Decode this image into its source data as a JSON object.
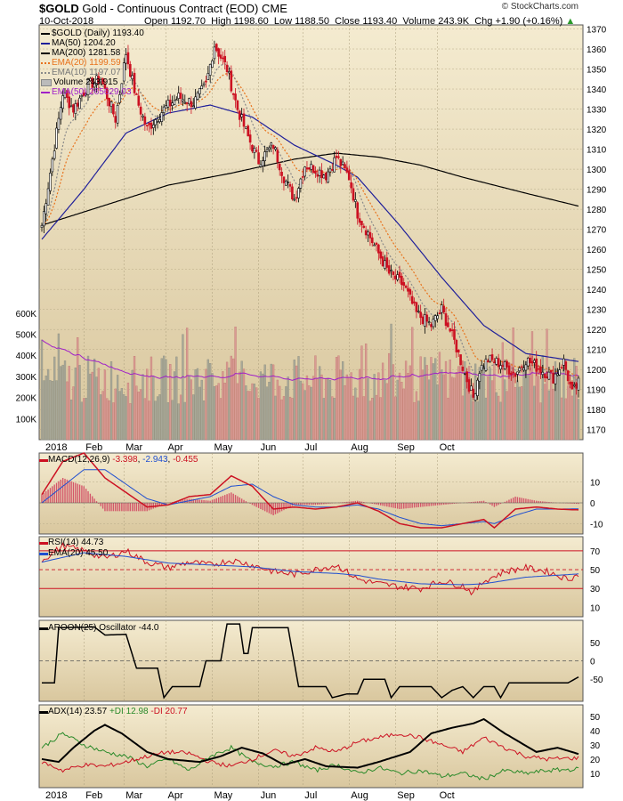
{
  "header": {
    "symbol": "$GOLD",
    "name": "Gold - Continuous Contract (EOD)",
    "exchange": "CME",
    "brand": "© StockCharts.com",
    "date": "10-Oct-2018",
    "open_label": "Open",
    "open": "1192.70",
    "high_label": "High",
    "high": "1198.60",
    "low_label": "Low",
    "low": "1188.50",
    "close_label": "Close",
    "close": "1193.40",
    "volume_label": "Volume",
    "volume": "243.9K",
    "chg_label": "Chg",
    "chg": "+1.90 (+0.16%)"
  },
  "legend": [
    {
      "text": "$GOLD (Daily) 1193.40",
      "color": "#000000",
      "style": "candle"
    },
    {
      "text": "MA(50) 1204.20",
      "color": "#1f1f9a",
      "style": "solid"
    },
    {
      "text": "MA(200) 1281.58",
      "color": "#000000",
      "style": "solid"
    },
    {
      "text": "EMA(20) 1199.59",
      "color": "#e8721c",
      "style": "dotted"
    },
    {
      "text": "EMA(10) 1197.07",
      "color": "#8a8a8a",
      "style": "dotted"
    },
    {
      "text": "Volume 243,915",
      "color": "#8a8a8a",
      "style": "block"
    },
    {
      "text": "EMA(50) 265629.03",
      "color": "#a020c8",
      "style": "solid"
    }
  ],
  "panels": {
    "macd": {
      "label": "MACD(12,26,9)",
      "value1": "-3.398",
      "value2": "-2.943",
      "value3": "-0.455"
    },
    "rsi": {
      "label": "RSI(14)",
      "value": "44.73",
      "ema_label": "EMA(20)",
      "ema_value": "45.50"
    },
    "aroon": {
      "label": "AROON(25) Oscillator",
      "value": "-44.0"
    },
    "adx": {
      "label": "ADX(14)",
      "adx": "23.57",
      "pdi_label": "+DI",
      "pdi": "12.98",
      "mdi_label": "-DI",
      "mdi": "20.77"
    }
  },
  "colors": {
    "panel_top": "#f4ebd0",
    "panel_bottom": "#d9c79e",
    "up_candle": "#000000",
    "down_candle": "#cc1122",
    "vol_up": "#a8a898",
    "vol_down": "#d89b94",
    "ma50": "#1f1f9a",
    "ma200": "#000000",
    "ema20": "#e8721c",
    "ema10": "#8a8a8a",
    "vol_ema": "#a020c8",
    "macd": "#cc1122",
    "signal": "#1f4fd0",
    "rsi": "#cc1122",
    "adx": "#000000",
    "pdi": "#2a8a2a",
    "mdi": "#cc1122"
  },
  "chart_data": [
    {
      "type": "candlestick",
      "title": "$GOLD (Daily)",
      "x_labels": [
        "2018",
        "Feb",
        "Mar",
        "Apr",
        "May",
        "Jun",
        "Jul",
        "Aug",
        "Sep",
        "Oct"
      ],
      "ylim": [
        1165,
        1372
      ],
      "y_ticks": [
        1170,
        1180,
        1190,
        1200,
        1210,
        1220,
        1230,
        1240,
        1250,
        1260,
        1270,
        1280,
        1290,
        1300,
        1310,
        1320,
        1330,
        1340,
        1350,
        1360,
        1370
      ],
      "volume_ticks": [
        "100K",
        "200K",
        "300K",
        "400K",
        "500K",
        "600K"
      ],
      "close_key": [
        [
          0,
          1272
        ],
        [
          10,
          1338
        ],
        [
          15,
          1330
        ],
        [
          22,
          1342
        ],
        [
          28,
          1345
        ],
        [
          35,
          1325
        ],
        [
          40,
          1358
        ],
        [
          45,
          1335
        ],
        [
          50,
          1320
        ],
        [
          58,
          1330
        ],
        [
          65,
          1336
        ],
        [
          72,
          1333
        ],
        [
          78,
          1342
        ],
        [
          82,
          1362
        ],
        [
          88,
          1350
        ],
        [
          93,
          1330
        ],
        [
          98,
          1316
        ],
        [
          103,
          1304
        ],
        [
          110,
          1312
        ],
        [
          115,
          1296
        ],
        [
          120,
          1285
        ],
        [
          125,
          1302
        ],
        [
          130,
          1300
        ],
        [
          135,
          1297
        ],
        [
          140,
          1306
        ],
        [
          146,
          1296
        ],
        [
          150,
          1278
        ],
        [
          155,
          1268
        ],
        [
          160,
          1258
        ],
        [
          165,
          1248
        ],
        [
          172,
          1242
        ],
        [
          178,
          1228
        ],
        [
          185,
          1222
        ],
        [
          190,
          1230
        ],
        [
          196,
          1214
        ],
        [
          201,
          1198
        ],
        [
          205,
          1186
        ],
        [
          208,
          1200
        ],
        [
          212,
          1205
        ],
        [
          218,
          1203
        ],
        [
          225,
          1198
        ],
        [
          230,
          1205
        ],
        [
          237,
          1200
        ],
        [
          243,
          1196
        ],
        [
          248,
          1204
        ],
        [
          252,
          1188
        ],
        [
          255,
          1193
        ]
      ],
      "series": [
        {
          "name": "MA(50)",
          "last": 1204.2,
          "key": [
            [
              0,
              1265
            ],
            [
              20,
              1290
            ],
            [
              40,
              1318
            ],
            [
              60,
              1328
            ],
            [
              80,
              1332
            ],
            [
              100,
              1326
            ],
            [
              120,
              1312
            ],
            [
              140,
              1302
            ],
            [
              150,
              1296
            ],
            [
              170,
              1272
            ],
            [
              190,
              1246
            ],
            [
              210,
              1222
            ],
            [
              230,
              1208
            ],
            [
              255,
              1204
            ]
          ]
        },
        {
          "name": "MA(200)",
          "last": 1281.58,
          "key": [
            [
              0,
              1272
            ],
            [
              30,
              1282
            ],
            [
              60,
              1292
            ],
            [
              90,
              1298
            ],
            [
              120,
              1305
            ],
            [
              140,
              1308
            ],
            [
              160,
              1306
            ],
            [
              180,
              1302
            ],
            [
              200,
              1296
            ],
            [
              230,
              1288
            ],
            [
              255,
              1281.58
            ]
          ]
        },
        {
          "name": "EMA(20)",
          "last": 1199.59
        },
        {
          "name": "EMA(10)",
          "last": 1197.07
        }
      ],
      "volume": {
        "last": 243915,
        "ema50": 265629.03,
        "typical_range": [
          150000,
          520000
        ]
      }
    },
    {
      "type": "line",
      "title": "MACD(12,26,9)",
      "values": {
        "macd": -3.398,
        "signal": -2.943,
        "histogram": -0.455
      },
      "ylim": [
        -15,
        24
      ],
      "y_ticks": [
        -10,
        0,
        10
      ],
      "macd_key": [
        [
          0,
          4
        ],
        [
          10,
          20
        ],
        [
          20,
          24
        ],
        [
          30,
          12
        ],
        [
          40,
          5
        ],
        [
          50,
          -2
        ],
        [
          60,
          -1
        ],
        [
          70,
          3
        ],
        [
          80,
          4
        ],
        [
          90,
          13
        ],
        [
          100,
          8
        ],
        [
          110,
          -3
        ],
        [
          120,
          -2
        ],
        [
          130,
          -3
        ],
        [
          140,
          -2
        ],
        [
          150,
          0
        ],
        [
          160,
          -4
        ],
        [
          170,
          -10
        ],
        [
          180,
          -12
        ],
        [
          190,
          -12
        ],
        [
          200,
          -10
        ],
        [
          210,
          -8
        ],
        [
          215,
          -12
        ],
        [
          225,
          -3
        ],
        [
          235,
          -2
        ],
        [
          245,
          -3
        ],
        [
          255,
          -3.4
        ]
      ],
      "signal_key": [
        [
          0,
          0
        ],
        [
          10,
          8
        ],
        [
          20,
          16
        ],
        [
          30,
          16
        ],
        [
          40,
          9
        ],
        [
          50,
          2
        ],
        [
          60,
          -1
        ],
        [
          70,
          1
        ],
        [
          80,
          3
        ],
        [
          90,
          8
        ],
        [
          100,
          9
        ],
        [
          110,
          3
        ],
        [
          120,
          -1
        ],
        [
          130,
          -2
        ],
        [
          140,
          -2
        ],
        [
          150,
          -1
        ],
        [
          160,
          -3
        ],
        [
          170,
          -7
        ],
        [
          180,
          -10
        ],
        [
          190,
          -11
        ],
        [
          200,
          -10
        ],
        [
          210,
          -9
        ],
        [
          215,
          -10
        ],
        [
          225,
          -6
        ],
        [
          235,
          -3
        ],
        [
          245,
          -3
        ],
        [
          255,
          -2.9
        ]
      ]
    },
    {
      "type": "line",
      "title": "RSI(14)",
      "values": {
        "rsi": 44.73,
        "ema20": 45.5
      },
      "ylim": [
        0,
        85
      ],
      "y_ticks": [
        10,
        30,
        50,
        70
      ],
      "rsi_key": [
        [
          0,
          60
        ],
        [
          10,
          75
        ],
        [
          20,
          70
        ],
        [
          30,
          62
        ],
        [
          40,
          70
        ],
        [
          50,
          58
        ],
        [
          60,
          52
        ],
        [
          70,
          58
        ],
        [
          80,
          55
        ],
        [
          90,
          60
        ],
        [
          100,
          55
        ],
        [
          110,
          48
        ],
        [
          120,
          45
        ],
        [
          130,
          50
        ],
        [
          140,
          55
        ],
        [
          150,
          40
        ],
        [
          160,
          35
        ],
        [
          170,
          32
        ],
        [
          180,
          30
        ],
        [
          190,
          38
        ],
        [
          200,
          33
        ],
        [
          205,
          25
        ],
        [
          210,
          38
        ],
        [
          220,
          48
        ],
        [
          230,
          52
        ],
        [
          240,
          48
        ],
        [
          250,
          40
        ],
        [
          255,
          44.7
        ]
      ],
      "ema_key": [
        [
          0,
          58
        ],
        [
          20,
          68
        ],
        [
          40,
          64
        ],
        [
          60,
          57
        ],
        [
          80,
          55
        ],
        [
          100,
          53
        ],
        [
          120,
          48
        ],
        [
          140,
          46
        ],
        [
          150,
          44
        ],
        [
          160,
          40
        ],
        [
          180,
          35
        ],
        [
          200,
          34
        ],
        [
          210,
          35
        ],
        [
          230,
          42
        ],
        [
          255,
          45.5
        ]
      ]
    },
    {
      "type": "line",
      "title": "AROON(25) Oscillator",
      "value": -44.0,
      "ylim": [
        -110,
        110
      ],
      "y_ticks": [
        -50,
        0,
        50
      ],
      "key": [
        [
          0,
          -60
        ],
        [
          6,
          -60
        ],
        [
          8,
          90
        ],
        [
          25,
          92
        ],
        [
          30,
          70
        ],
        [
          40,
          72
        ],
        [
          45,
          -20
        ],
        [
          55,
          -20
        ],
        [
          58,
          -100
        ],
        [
          62,
          -70
        ],
        [
          75,
          -70
        ],
        [
          78,
          0
        ],
        [
          85,
          0
        ],
        [
          88,
          100
        ],
        [
          94,
          100
        ],
        [
          96,
          20
        ],
        [
          98,
          20
        ],
        [
          100,
          90
        ],
        [
          117,
          90
        ],
        [
          122,
          -70
        ],
        [
          135,
          -70
        ],
        [
          138,
          -100
        ],
        [
          145,
          -90
        ],
        [
          150,
          -90
        ],
        [
          153,
          -50
        ],
        [
          163,
          -50
        ],
        [
          166,
          -100
        ],
        [
          170,
          -70
        ],
        [
          185,
          -70
        ],
        [
          190,
          -100
        ],
        [
          195,
          -80
        ],
        [
          200,
          -70
        ],
        [
          205,
          -100
        ],
        [
          210,
          -70
        ],
        [
          215,
          -70
        ],
        [
          218,
          -100
        ],
        [
          222,
          -60
        ],
        [
          250,
          -60
        ],
        [
          255,
          -44
        ]
      ]
    },
    {
      "type": "line",
      "title": "ADX(14)",
      "values": {
        "adx": 23.57,
        "pdi": 12.98,
        "mdi": 20.77
      },
      "ylim": [
        0,
        58
      ],
      "y_ticks": [
        10,
        20,
        30,
        40,
        50
      ],
      "adx_key": [
        [
          0,
          20
        ],
        [
          8,
          18
        ],
        [
          15,
          28
        ],
        [
          25,
          40
        ],
        [
          30,
          44
        ],
        [
          38,
          38
        ],
        [
          50,
          25
        ],
        [
          60,
          20
        ],
        [
          75,
          18
        ],
        [
          85,
          22
        ],
        [
          95,
          28
        ],
        [
          105,
          24
        ],
        [
          115,
          16
        ],
        [
          125,
          20
        ],
        [
          135,
          15
        ],
        [
          150,
          14
        ],
        [
          160,
          18
        ],
        [
          175,
          25
        ],
        [
          185,
          38
        ],
        [
          195,
          42
        ],
        [
          205,
          45
        ],
        [
          210,
          48
        ],
        [
          220,
          38
        ],
        [
          235,
          25
        ],
        [
          245,
          28
        ],
        [
          255,
          23.6
        ]
      ],
      "pdi_key": [
        [
          0,
          28
        ],
        [
          10,
          38
        ],
        [
          20,
          30
        ],
        [
          30,
          25
        ],
        [
          40,
          22
        ],
        [
          50,
          15
        ],
        [
          60,
          20
        ],
        [
          70,
          12
        ],
        [
          80,
          22
        ],
        [
          90,
          28
        ],
        [
          100,
          18
        ],
        [
          110,
          15
        ],
        [
          120,
          18
        ],
        [
          130,
          12
        ],
        [
          140,
          16
        ],
        [
          150,
          10
        ],
        [
          160,
          14
        ],
        [
          170,
          10
        ],
        [
          180,
          12
        ],
        [
          190,
          8
        ],
        [
          200,
          10
        ],
        [
          210,
          6
        ],
        [
          220,
          12
        ],
        [
          230,
          10
        ],
        [
          240,
          12
        ],
        [
          255,
          13
        ]
      ],
      "mdi_key": [
        [
          0,
          18
        ],
        [
          10,
          12
        ],
        [
          20,
          16
        ],
        [
          30,
          15
        ],
        [
          40,
          18
        ],
        [
          50,
          22
        ],
        [
          60,
          25
        ],
        [
          70,
          24
        ],
        [
          80,
          18
        ],
        [
          90,
          15
        ],
        [
          100,
          20
        ],
        [
          110,
          26
        ],
        [
          120,
          22
        ],
        [
          130,
          28
        ],
        [
          140,
          25
        ],
        [
          150,
          32
        ],
        [
          160,
          35
        ],
        [
          170,
          38
        ],
        [
          180,
          35
        ],
        [
          190,
          30
        ],
        [
          200,
          25
        ],
        [
          210,
          35
        ],
        [
          220,
          28
        ],
        [
          230,
          22
        ],
        [
          240,
          20
        ],
        [
          255,
          20.8
        ]
      ]
    }
  ]
}
